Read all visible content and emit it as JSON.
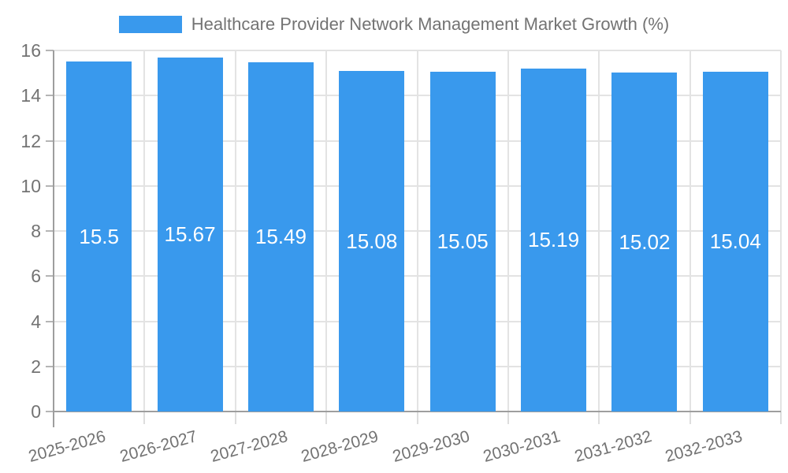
{
  "legend": {
    "label": "Healthcare Provider Network Management Market Growth (%)"
  },
  "colors": {
    "bar": "#3999ED",
    "grid": "#E3E3E3",
    "axis": "#9E9E9E",
    "tick": "#B5B5B5",
    "tick_light": "#DEDEDE",
    "text": "#737373",
    "value_text": "#FFFFFF",
    "background": "#FFFFFF"
  },
  "chart_data": {
    "type": "bar",
    "title": "Healthcare Provider Network Management Market Growth (%)",
    "categories": [
      "2025-2026",
      "2026-2027",
      "2027-2028",
      "2028-2029",
      "2029-2030",
      "2030-2031",
      "2031-2032",
      "2032-2033"
    ],
    "values": [
      15.5,
      15.67,
      15.49,
      15.08,
      15.05,
      15.19,
      15.02,
      15.04
    ],
    "xlabel": "",
    "ylabel": "",
    "ylim": [
      0,
      16
    ],
    "yticks": [
      0,
      2,
      4,
      6,
      8,
      10,
      12,
      14,
      16
    ],
    "grid": true,
    "legend_position": "top",
    "x_label_rotation_deg": -15.5
  }
}
